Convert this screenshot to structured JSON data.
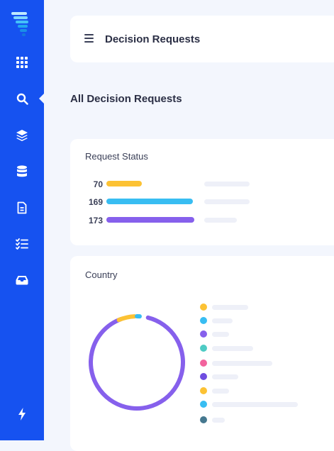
{
  "sidebar": {
    "brand_color": "#1652f0",
    "logo": "brand-logo",
    "items": [
      {
        "name": "dashboard",
        "icon": "grid-icon"
      },
      {
        "name": "search",
        "icon": "search-icon",
        "active": true
      },
      {
        "name": "layers",
        "icon": "layers-icon"
      },
      {
        "name": "database",
        "icon": "database-icon"
      },
      {
        "name": "document",
        "icon": "document-icon"
      },
      {
        "name": "checklist",
        "icon": "checklist-icon"
      },
      {
        "name": "inbox",
        "icon": "inbox-icon"
      }
    ],
    "footer_icon": "lightning-icon"
  },
  "header": {
    "menu_icon": "hamburger-icon",
    "title": "Decision Requests"
  },
  "page": {
    "title": "All Decision Requests"
  },
  "request_status": {
    "title": "Request Status",
    "rows": [
      {
        "count": "70",
        "color": "#fcc234"
      },
      {
        "count": "169",
        "color": "#38bdf2"
      },
      {
        "count": "173",
        "color": "#8660ec"
      }
    ]
  },
  "country": {
    "title": "Country",
    "legend_colors": [
      "#fcc234",
      "#38bdf2",
      "#8660ec",
      "#4ecbc4",
      "#f2639d",
      "#6f4de0",
      "#fcc234",
      "#38bdf2",
      "#45788f"
    ],
    "donut_segments": [
      {
        "color": "#8660ec",
        "fraction": 0.9
      },
      {
        "color": "#fcc234",
        "fraction": 0.06
      },
      {
        "color": "#38bdf2",
        "fraction": 0.015
      }
    ]
  }
}
